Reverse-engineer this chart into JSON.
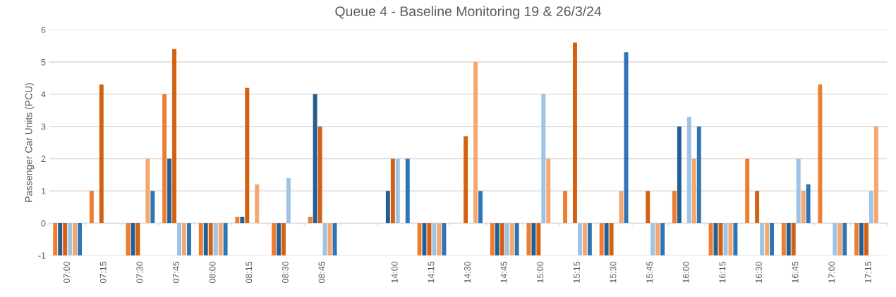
{
  "chart_data": {
    "type": "bar",
    "title": "Queue 4 - Baseline Monitoring 19 & 26/3/24",
    "ylabel": "Passenger Car Units (PCU)",
    "categories": [
      "07:00",
      "07:15",
      "07:30",
      "07:45",
      "08:00",
      "08:15",
      "08:30",
      "08:45",
      null,
      "14:00",
      "14:15",
      "14:30",
      "14:45",
      "15:00",
      "15:15",
      "15:30",
      "15:45",
      "16:00",
      "16:15",
      "16:30",
      "16:45",
      "17:00",
      "17:15"
    ],
    "series": [
      {
        "color": "#ed7d31",
        "values": [
          -1,
          1,
          -1,
          4,
          -1,
          0.2,
          -1,
          0.2,
          null,
          0,
          -1,
          0,
          -1,
          -1,
          1,
          -1,
          0,
          1,
          -1,
          2,
          -1,
          4.3,
          -1
        ]
      },
      {
        "color": "#255e91",
        "values": [
          -1,
          0,
          -1,
          2,
          -1,
          0.2,
          -1,
          4,
          null,
          1,
          -1,
          0,
          -1,
          -1,
          0,
          -1,
          0,
          3,
          -1,
          0,
          -1,
          0,
          -1
        ]
      },
      {
        "color": "#d46012",
        "values": [
          -1,
          4.3,
          -1,
          5.4,
          -1,
          4.2,
          -1,
          3,
          null,
          2,
          -1,
          2.7,
          -1,
          -1,
          5.6,
          -1,
          1,
          0,
          -1,
          1,
          -1,
          0,
          -1
        ]
      },
      {
        "color": "#9dc3e6",
        "values": [
          -1,
          0,
          0,
          -1,
          -1,
          0,
          1.4,
          -1,
          null,
          2,
          -1,
          0,
          -1,
          4,
          -1,
          0,
          -1,
          3.3,
          -1,
          -1,
          2,
          -1,
          1
        ]
      },
      {
        "color": "#f4a76f",
        "values": [
          -1,
          0,
          2,
          -1,
          -1,
          1.2,
          0,
          -1,
          null,
          0,
          -1,
          5,
          -1,
          2,
          -1,
          1,
          -1,
          2,
          -1,
          -1,
          1,
          -1,
          3
        ]
      },
      {
        "color": "#2e75b6",
        "values": [
          -1,
          0,
          1,
          -1,
          -1,
          0,
          0,
          -1,
          null,
          2,
          -1,
          1,
          -1,
          0,
          -1,
          5.3,
          -1,
          3,
          -1,
          -1,
          1.2,
          -1,
          0
        ]
      }
    ],
    "ylim": [
      -1,
      6
    ],
    "yticks": [
      -1,
      0,
      1,
      2,
      3,
      4,
      5,
      6
    ],
    "grid": "y",
    "legend": false
  }
}
